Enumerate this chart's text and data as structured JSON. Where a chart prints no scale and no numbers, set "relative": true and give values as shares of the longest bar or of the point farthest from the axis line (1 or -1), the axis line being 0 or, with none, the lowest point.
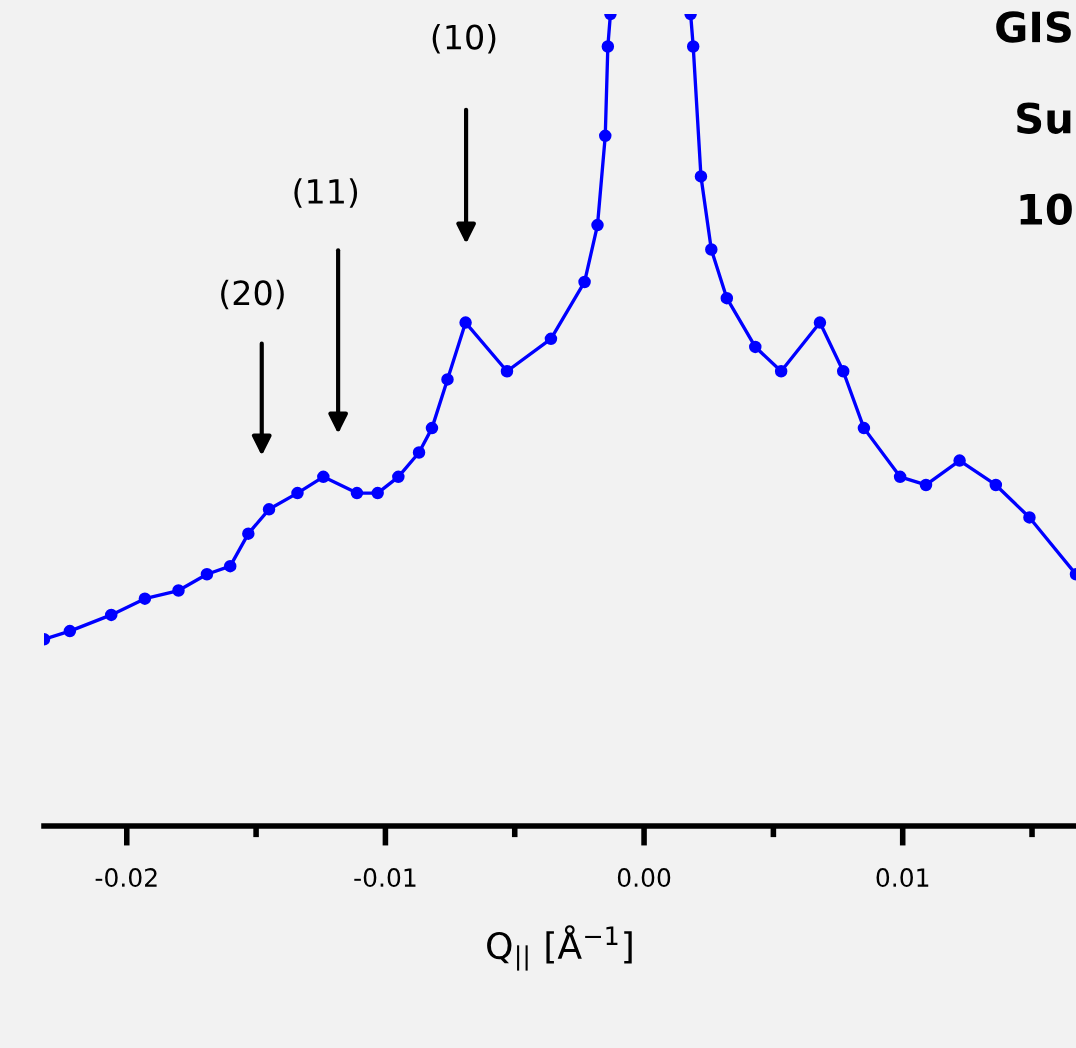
{
  "chart_data": {
    "type": "line",
    "relative": true,
    "xlabel": "Q$_{||}$ [Å$^{−1}$]",
    "xlim": [
      -0.0232,
      0.0167
    ],
    "xticks": [
      {
        "value": -0.02,
        "label": "-0.02"
      },
      {
        "value": -0.015,
        "label": null
      },
      {
        "value": -0.01,
        "label": "-0.01"
      },
      {
        "value": -0.005,
        "label": null
      },
      {
        "value": 0.0,
        "label": "0.00"
      },
      {
        "value": 0.005,
        "label": null
      },
      {
        "value": 0.01,
        "label": "0.01"
      },
      {
        "value": 0.015,
        "label": null
      }
    ],
    "tick_labels": "x",
    "grid": false,
    "legend": false,
    "marker": "circle",
    "line_style": "solid",
    "series": [
      {
        "color": "#0000ff",
        "x": [
          -0.0232,
          -0.0222,
          -0.0206,
          -0.0193,
          -0.018,
          -0.0169,
          -0.016,
          -0.0153,
          -0.0145,
          -0.0134,
          -0.0124,
          -0.0111,
          -0.0103,
          -0.0095,
          -0.0087,
          -0.0082,
          -0.0076,
          -0.0069,
          -0.0053,
          -0.0036,
          -0.0023,
          -0.0018,
          -0.0015,
          -0.0014,
          -0.0013,
          0.0,
          0.0018,
          0.0019,
          0.0022,
          0.0026,
          0.0032,
          0.0043,
          0.0053,
          0.0068,
          0.0077,
          0.0085,
          0.0099,
          0.0109,
          0.0122,
          0.0136,
          0.0149,
          0.0167
        ],
        "values": [
          0.23,
          0.24,
          0.26,
          0.28,
          0.29,
          0.31,
          0.32,
          0.36,
          0.39,
          0.41,
          0.43,
          0.41,
          0.41,
          0.43,
          0.46,
          0.49,
          0.55,
          0.62,
          0.56,
          0.6,
          0.67,
          0.74,
          0.85,
          0.96,
          1.0,
          null,
          1.0,
          0.96,
          0.8,
          0.71,
          0.65,
          0.59,
          0.56,
          0.62,
          0.56,
          0.49,
          0.43,
          0.42,
          0.45,
          0.42,
          0.38,
          0.31
        ]
      }
    ],
    "annotations": [
      "(10)",
      "(11)",
      "(20)",
      "GIS",
      "Su",
      "10"
    ]
  }
}
